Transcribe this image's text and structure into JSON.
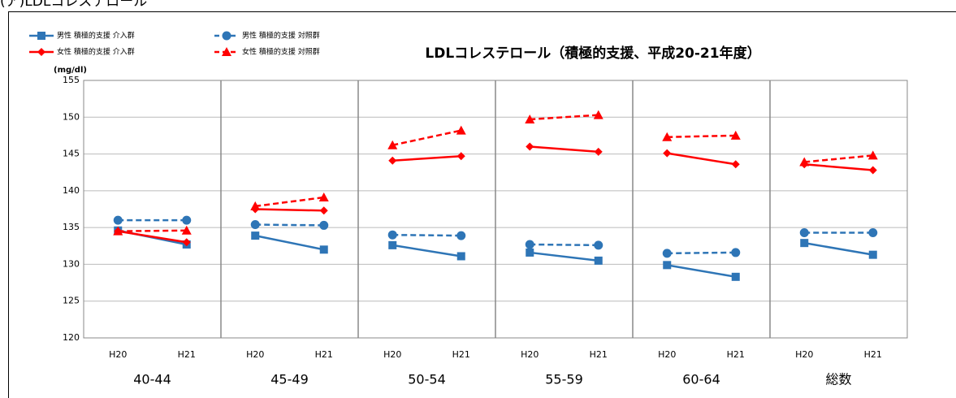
{
  "heading": "(ア)LDLコレステロール",
  "chart_data": {
    "type": "line",
    "title": "LDLコレステロール（積極的支援、平成20-21年度）",
    "y_label": "(mg/dl)",
    "groups": [
      "40-44",
      "45-49",
      "50-54",
      "55-59",
      "60-64",
      "総数"
    ],
    "categories": [
      "H20",
      "H21",
      "H20",
      "H21",
      "H20",
      "H21",
      "H20",
      "H21",
      "H20",
      "H21",
      "H20",
      "H21"
    ],
    "ylim": [
      120,
      155
    ],
    "yticks": [
      120,
      125,
      130,
      135,
      140,
      145,
      150,
      155
    ],
    "grid": true,
    "legend": "top-left",
    "series": [
      {
        "name": "男性 積極的支援 介入群",
        "color": "#2e75b6",
        "dash": false,
        "marker": "square",
        "values": [
          134.6,
          132.7,
          133.9,
          132.0,
          132.6,
          131.1,
          131.6,
          130.5,
          129.9,
          128.3,
          132.9,
          131.3
        ]
      },
      {
        "name": "男性 積極的支援 対照群",
        "color": "#2e75b6",
        "dash": true,
        "marker": "circle",
        "values": [
          136.0,
          136.0,
          135.4,
          135.3,
          134.0,
          133.9,
          132.7,
          132.6,
          131.5,
          131.6,
          134.3,
          134.3
        ]
      },
      {
        "name": "女性 積極的支援 介入群",
        "color": "#ff0000",
        "dash": false,
        "marker": "diamond",
        "values": [
          134.5,
          133.0,
          137.5,
          137.3,
          144.1,
          144.7,
          146.0,
          145.3,
          145.1,
          143.6,
          143.6,
          142.8
        ]
      },
      {
        "name": "女性 積極的支援 対照群",
        "color": "#ff0000",
        "dash": true,
        "marker": "triangle",
        "values": [
          134.5,
          134.6,
          137.9,
          139.1,
          146.2,
          148.2,
          149.7,
          150.3,
          147.3,
          147.5,
          143.9,
          144.8
        ]
      }
    ]
  }
}
